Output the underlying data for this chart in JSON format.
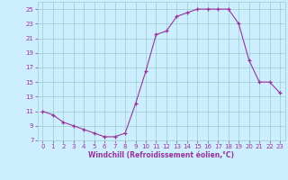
{
  "hours": [
    0,
    1,
    2,
    3,
    4,
    5,
    6,
    7,
    8,
    9,
    10,
    11,
    12,
    13,
    14,
    15,
    16,
    17,
    18,
    19,
    20,
    21,
    22,
    23
  ],
  "values": [
    11.0,
    10.5,
    9.5,
    9.0,
    8.5,
    8.0,
    7.5,
    7.5,
    8.0,
    12.0,
    16.5,
    21.5,
    22.0,
    24.0,
    24.5,
    25.0,
    25.0,
    25.0,
    25.0,
    23.0,
    18.0,
    15.0,
    15.0,
    13.5
  ],
  "line_color": "#993399",
  "marker": "+",
  "marker_color": "#993399",
  "bg_color": "#cceeff",
  "grid_color": "#99cccc",
  "xlabel": "Windchill (Refroidissement éolien,°C)",
  "xlabel_color": "#993399",
  "tick_color": "#993399",
  "ylim": [
    7,
    26
  ],
  "xlim": [
    -0.5,
    23.5
  ],
  "yticks": [
    7,
    9,
    11,
    13,
    15,
    17,
    19,
    21,
    23,
    25
  ],
  "xticks": [
    0,
    1,
    2,
    3,
    4,
    5,
    6,
    7,
    8,
    9,
    10,
    11,
    12,
    13,
    14,
    15,
    16,
    17,
    18,
    19,
    20,
    21,
    22,
    23
  ]
}
